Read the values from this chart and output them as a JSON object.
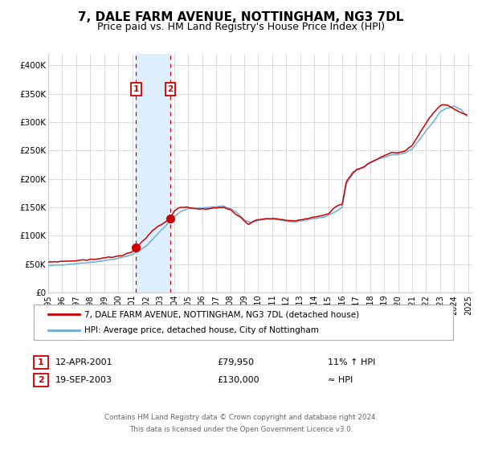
{
  "title": "7, DALE FARM AVENUE, NOTTINGHAM, NG3 7DL",
  "subtitle": "Price paid vs. HM Land Registry's House Price Index (HPI)",
  "title_fontsize": 11,
  "subtitle_fontsize": 9,
  "legend_line1": "7, DALE FARM AVENUE, NOTTINGHAM, NG3 7DL (detached house)",
  "legend_line2": "HPI: Average price, detached house, City of Nottingham",
  "footer_line1": "Contains HM Land Registry data © Crown copyright and database right 2024.",
  "footer_line2": "This data is licensed under the Open Government Licence v3.0.",
  "transaction1_label": "1",
  "transaction1_date": "12-APR-2001",
  "transaction1_price": "£79,950",
  "transaction1_hpi": "11% ↑ HPI",
  "transaction2_label": "2",
  "transaction2_date": "19-SEP-2003",
  "transaction2_price": "£130,000",
  "transaction2_hpi": "≈ HPI",
  "transaction1_x": 2001.28,
  "transaction1_y": 79950,
  "transaction2_x": 2003.72,
  "transaction2_y": 130000,
  "vline1_x": 2001.28,
  "vline2_x": 2003.72,
  "shade_x1": 2001.28,
  "shade_x2": 2003.72,
  "ylim": [
    0,
    420000
  ],
  "xlim_start": 1995.0,
  "xlim_end": 2025.3,
  "yticks": [
    0,
    50000,
    100000,
    150000,
    200000,
    250000,
    300000,
    350000,
    400000
  ],
  "ytick_labels": [
    "£0",
    "£50K",
    "£100K",
    "£150K",
    "£200K",
    "£250K",
    "£300K",
    "£350K",
    "£400K"
  ],
  "xticks": [
    1995,
    1996,
    1997,
    1998,
    1999,
    2000,
    2001,
    2002,
    2003,
    2004,
    2005,
    2006,
    2007,
    2008,
    2009,
    2010,
    2011,
    2012,
    2013,
    2014,
    2015,
    2016,
    2017,
    2018,
    2019,
    2020,
    2021,
    2022,
    2023,
    2024,
    2025
  ],
  "hpi_color": "#6baed6",
  "price_color": "#cc0000",
  "vline_color": "#cc0000",
  "shade_color": "#ddeeff",
  "grid_color": "#cccccc",
  "bg_color": "#ffffff",
  "marker_color": "#cc0000",
  "marker_size": 7,
  "label_box_color": "#cc0000",
  "label_fill": "#ffffff",
  "hpi_anchors_x": [
    1995.0,
    1996.0,
    1997.0,
    1998.0,
    1999.0,
    2000.0,
    2000.5,
    2001.0,
    2001.5,
    2002.0,
    2002.5,
    2003.0,
    2003.5,
    2004.0,
    2004.5,
    2005.0,
    2005.5,
    2006.0,
    2006.5,
    2007.0,
    2007.5,
    2008.0,
    2008.5,
    2009.0,
    2009.5,
    2010.0,
    2010.5,
    2011.0,
    2011.5,
    2012.0,
    2012.5,
    2013.0,
    2013.5,
    2014.0,
    2014.5,
    2015.0,
    2015.5,
    2016.0,
    2016.3,
    2016.8,
    2017.0,
    2017.5,
    2018.0,
    2018.5,
    2019.0,
    2019.5,
    2020.0,
    2020.5,
    2021.0,
    2021.5,
    2022.0,
    2022.5,
    2023.0,
    2023.5,
    2024.0,
    2024.5,
    2024.9
  ],
  "hpi_anchors_y": [
    47000,
    49000,
    51000,
    53000,
    56000,
    60000,
    63000,
    67000,
    73000,
    82000,
    95000,
    108000,
    120000,
    133000,
    143000,
    148000,
    148000,
    149000,
    150000,
    151000,
    152000,
    148000,
    140000,
    128000,
    123000,
    127000,
    129000,
    129000,
    128000,
    126000,
    124000,
    126000,
    128000,
    130000,
    132000,
    136000,
    142000,
    150000,
    192000,
    210000,
    215000,
    220000,
    228000,
    234000,
    238000,
    242000,
    243000,
    246000,
    253000,
    268000,
    285000,
    300000,
    318000,
    325000,
    328000,
    322000,
    310000
  ],
  "price_anchors_x": [
    1995.0,
    1996.0,
    1997.0,
    1997.5,
    1998.0,
    1998.5,
    1999.0,
    1999.5,
    2000.0,
    2000.5,
    2001.0,
    2001.28,
    2001.5,
    2002.0,
    2002.5,
    2003.0,
    2003.5,
    2003.72,
    2004.0,
    2004.3,
    2004.5,
    2005.0,
    2005.5,
    2006.0,
    2006.5,
    2007.0,
    2007.5,
    2008.0,
    2008.5,
    2009.0,
    2009.3,
    2009.5,
    2010.0,
    2010.5,
    2011.0,
    2011.5,
    2012.0,
    2012.5,
    2013.0,
    2013.5,
    2014.0,
    2014.5,
    2015.0,
    2015.5,
    2016.0,
    2016.3,
    2016.8,
    2017.0,
    2017.5,
    2018.0,
    2018.5,
    2019.0,
    2019.5,
    2020.0,
    2020.5,
    2021.0,
    2021.5,
    2022.0,
    2022.5,
    2023.0,
    2023.3,
    2023.8,
    2024.0,
    2024.5,
    2024.9
  ],
  "price_anchors_y": [
    53000,
    55000,
    56000,
    57000,
    58000,
    59000,
    61000,
    62000,
    64000,
    67000,
    72000,
    79950,
    84000,
    96000,
    110000,
    118000,
    126000,
    130000,
    143000,
    148000,
    150000,
    150000,
    148000,
    147000,
    148000,
    149000,
    150000,
    146000,
    137000,
    127000,
    120000,
    124000,
    128000,
    130000,
    130000,
    129000,
    127000,
    126000,
    128000,
    130000,
    133000,
    135000,
    138000,
    150000,
    155000,
    196000,
    212000,
    216000,
    221000,
    229000,
    235000,
    241000,
    246000,
    246000,
    249000,
    259000,
    279000,
    299000,
    316000,
    329000,
    331000,
    326000,
    323000,
    316000,
    313000
  ]
}
